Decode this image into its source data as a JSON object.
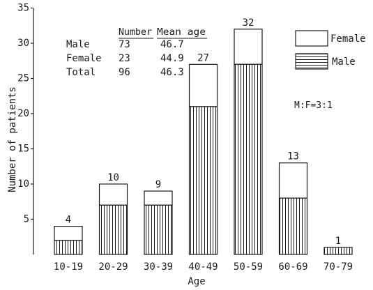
{
  "chart_data": {
    "type": "bar",
    "stacked": true,
    "xlabel": "Age",
    "ylabel": "Number of patients",
    "ylim": [
      0,
      35
    ],
    "yticks": [
      5,
      10,
      15,
      20,
      25,
      30,
      35
    ],
    "categories": [
      "10-19",
      "20-29",
      "30-39",
      "40-49",
      "50-59",
      "60-69",
      "70-79"
    ],
    "series": [
      {
        "name": "Male",
        "values": [
          2,
          7,
          7,
          21,
          27,
          8,
          1
        ],
        "pattern": "vertical-hatch"
      },
      {
        "name": "Female",
        "values": [
          2,
          3,
          2,
          6,
          5,
          5,
          0
        ],
        "pattern": "white"
      }
    ],
    "totals": [
      "4",
      "10",
      "9",
      "27",
      "32",
      "13",
      "1"
    ],
    "legend_position": "right",
    "ratio_note": "M:F=3:1",
    "summary_table": {
      "headers": [
        "Number",
        "Mean age"
      ],
      "rows": [
        {
          "label": "Male",
          "number": "73",
          "mean_age": "46.7"
        },
        {
          "label": "Female",
          "number": "23",
          "mean_age": "44.9"
        },
        {
          "label": "Total",
          "number": "96",
          "mean_age": "46.3"
        }
      ]
    },
    "colors": {
      "ink": "#1a1a1a",
      "background": "#ffffff"
    }
  }
}
